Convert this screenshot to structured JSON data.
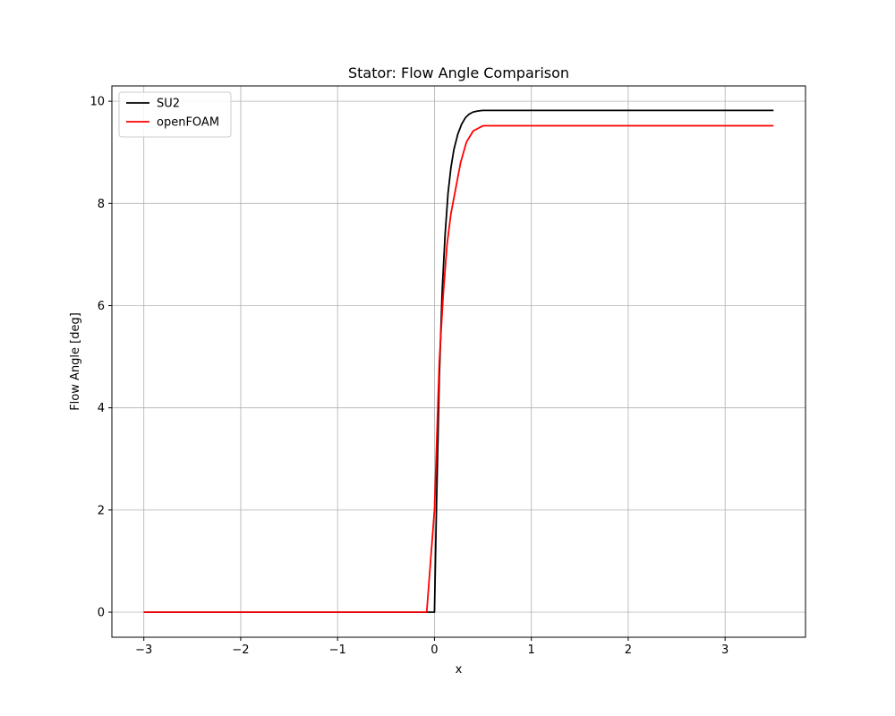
{
  "chart_data": {
    "type": "line",
    "title": "Stator: Flow Angle Comparison",
    "xlabel": "x",
    "ylabel": "Flow Angle [deg]",
    "xlim": [
      -3.33,
      3.83
    ],
    "ylim": [
      -0.49,
      10.3
    ],
    "xticks": [
      -3,
      -2,
      -1,
      0,
      1,
      2,
      3
    ],
    "yticks": [
      0,
      2,
      4,
      6,
      8,
      10
    ],
    "grid": true,
    "legend_position": "top-left",
    "series": [
      {
        "name": "SU2",
        "color": "#000000",
        "x": [
          -3.0,
          -0.05,
          0.0,
          0.02,
          0.05,
          0.08,
          0.11,
          0.14,
          0.17,
          0.2,
          0.24,
          0.28,
          0.32,
          0.36,
          0.4,
          0.45,
          0.5,
          3.5
        ],
        "y": [
          0,
          0,
          0,
          2.0,
          4.6,
          6.3,
          7.4,
          8.2,
          8.7,
          9.05,
          9.35,
          9.55,
          9.68,
          9.75,
          9.79,
          9.81,
          9.82,
          9.82
        ]
      },
      {
        "name": "openFOAM",
        "color": "#ff0000",
        "x": [
          -3.0,
          -0.08,
          0.0,
          0.05,
          0.09,
          0.13,
          0.17,
          0.22,
          0.27,
          0.33,
          0.4,
          0.5,
          3.5
        ],
        "y": [
          0,
          0,
          2.0,
          4.9,
          6.2,
          7.2,
          7.8,
          8.3,
          8.8,
          9.2,
          9.42,
          9.52,
          9.52
        ]
      }
    ]
  }
}
